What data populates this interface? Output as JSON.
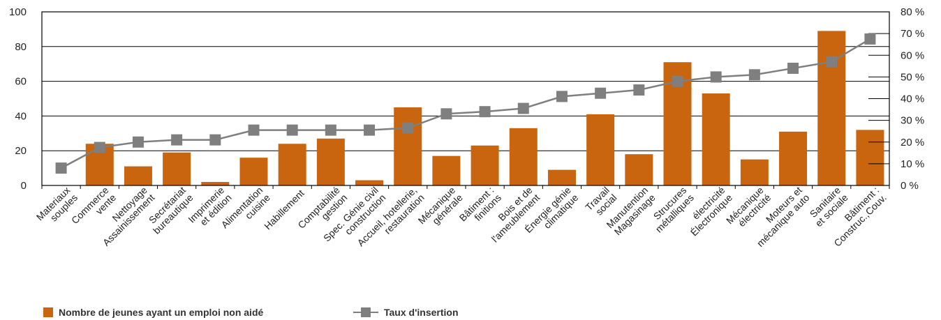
{
  "chart_data": {
    "type": "bar",
    "categories": [
      "Materiaux souples",
      "Commerce vente",
      "Nettoyage Assainissement",
      "Secrétariat bureautique",
      "Imprimerie et édition",
      "Alimentation cuisine",
      "Habillement",
      "Comptabilité gestion",
      "Spec. Génie civil construction",
      "Accueil, hotellerie, restauration",
      "Mécanique générale",
      "Bâtiment : finitions",
      "Bois et de l'ameublement",
      "Énergie génie climatique",
      "Travail social",
      "Manutention Magasinage",
      "Strucures métalliques",
      "électricité Électronique",
      "Mécanique électricité",
      "Moteurs et mécanique auto",
      "Sanitaire et sociale",
      "Bâtiment : Construc.,Couv."
    ],
    "series": [
      {
        "name": "Nombre de jeunes ayant un emploi non aidé",
        "axis": "left",
        "render": "bar",
        "color": "#C8650E",
        "values": [
          0,
          24,
          11,
          19,
          2,
          16,
          24,
          27,
          3,
          45,
          17,
          23,
          33,
          9,
          41,
          18,
          71,
          53,
          15,
          31,
          89,
          32
        ]
      },
      {
        "name": "Taux d'insertion",
        "axis": "right",
        "render": "line",
        "color": "#7F7F7F",
        "values": [
          8,
          17.5,
          20,
          21,
          21,
          25.5,
          25.5,
          25.5,
          25.5,
          26.5,
          33,
          34,
          35.5,
          41,
          42.5,
          44,
          48,
          50,
          51,
          54,
          57,
          67.5
        ]
      }
    ],
    "y_left": {
      "min": 0,
      "max": 100,
      "ticks": [
        "0",
        "20",
        "40",
        "60",
        "80",
        "100"
      ]
    },
    "y_right": {
      "min": 0,
      "max": 80,
      "ticks": [
        "0 %",
        "10 %",
        "20 %",
        "30 %",
        "40 %",
        "50 %",
        "60 %",
        "70 %",
        "80 %"
      ]
    },
    "grid": true,
    "legend_position": "bottom-left"
  }
}
